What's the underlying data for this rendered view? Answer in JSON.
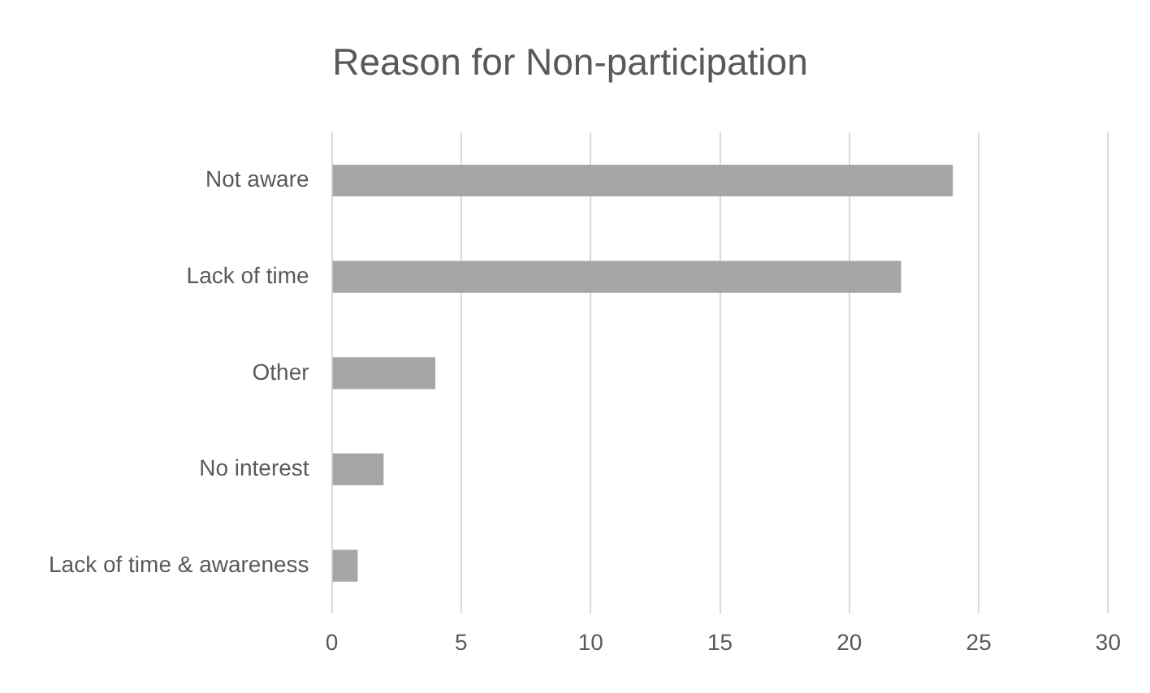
{
  "chart_data": {
    "type": "bar",
    "orientation": "horizontal",
    "title": "Reason for Non-participation",
    "categories": [
      "Not aware",
      "Lack of time",
      "Other",
      "No interest",
      "Lack of time & awareness"
    ],
    "values": [
      24,
      22,
      4,
      2,
      1
    ],
    "color": "#a6a6a6",
    "xlim": [
      0,
      30
    ],
    "xticks": [
      0,
      5,
      10,
      15,
      20,
      25,
      30
    ],
    "grid": "x",
    "legend": false
  }
}
